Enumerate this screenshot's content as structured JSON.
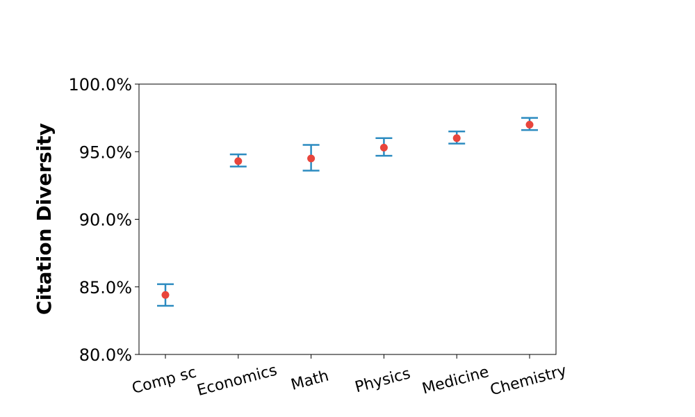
{
  "chart_data": {
    "type": "scatter",
    "title": "",
    "xlabel": "",
    "ylabel": "Citation Diversity",
    "categories": [
      "Comp sc",
      "Economics",
      "Math",
      "Physics",
      "Medicine",
      "Chemistry"
    ],
    "values": [
      84.4,
      94.3,
      94.5,
      95.3,
      96.0,
      97.0
    ],
    "error_low": [
      83.6,
      93.9,
      93.6,
      94.7,
      95.6,
      96.6
    ],
    "error_high": [
      85.2,
      94.8,
      95.5,
      96.0,
      96.5,
      97.5
    ],
    "ylim": [
      80,
      100
    ],
    "yticks": [
      80,
      85,
      90,
      95,
      100
    ],
    "ytick_labels": [
      "80.0%",
      "85.0%",
      "90.0%",
      "95.0%",
      "100.0%"
    ],
    "grid": false,
    "colors": {
      "marker": "#e8453c",
      "errorbar": "#2c8bc0",
      "axes": "#000000"
    }
  }
}
